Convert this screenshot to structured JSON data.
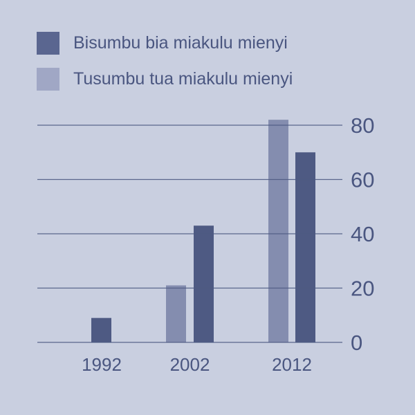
{
  "chart_data": {
    "type": "bar",
    "categories": [
      "1992",
      "2002",
      "2012"
    ],
    "series": [
      {
        "name": "Tusumbu tua miakulu mienyi",
        "values": [
          null,
          21,
          82
        ],
        "color": "#848daf"
      },
      {
        "name": "Bisumbu bia miakulu mienyi",
        "values": [
          9,
          43,
          70
        ],
        "color": "#4e5a83"
      }
    ],
    "legend": [
      "Bisumbu bia miakulu mienyi",
      "Tusumbu tua miakulu mienyi"
    ],
    "legend_colors": [
      "#4e5a83",
      "#a0a7c5"
    ],
    "yticks": [
      "0",
      "20",
      "40",
      "60",
      "80"
    ],
    "ylim": [
      0,
      80
    ],
    "yaxis_position": "right",
    "grid": true,
    "legend_placement": "top-left",
    "background": "#c9cfe0"
  }
}
